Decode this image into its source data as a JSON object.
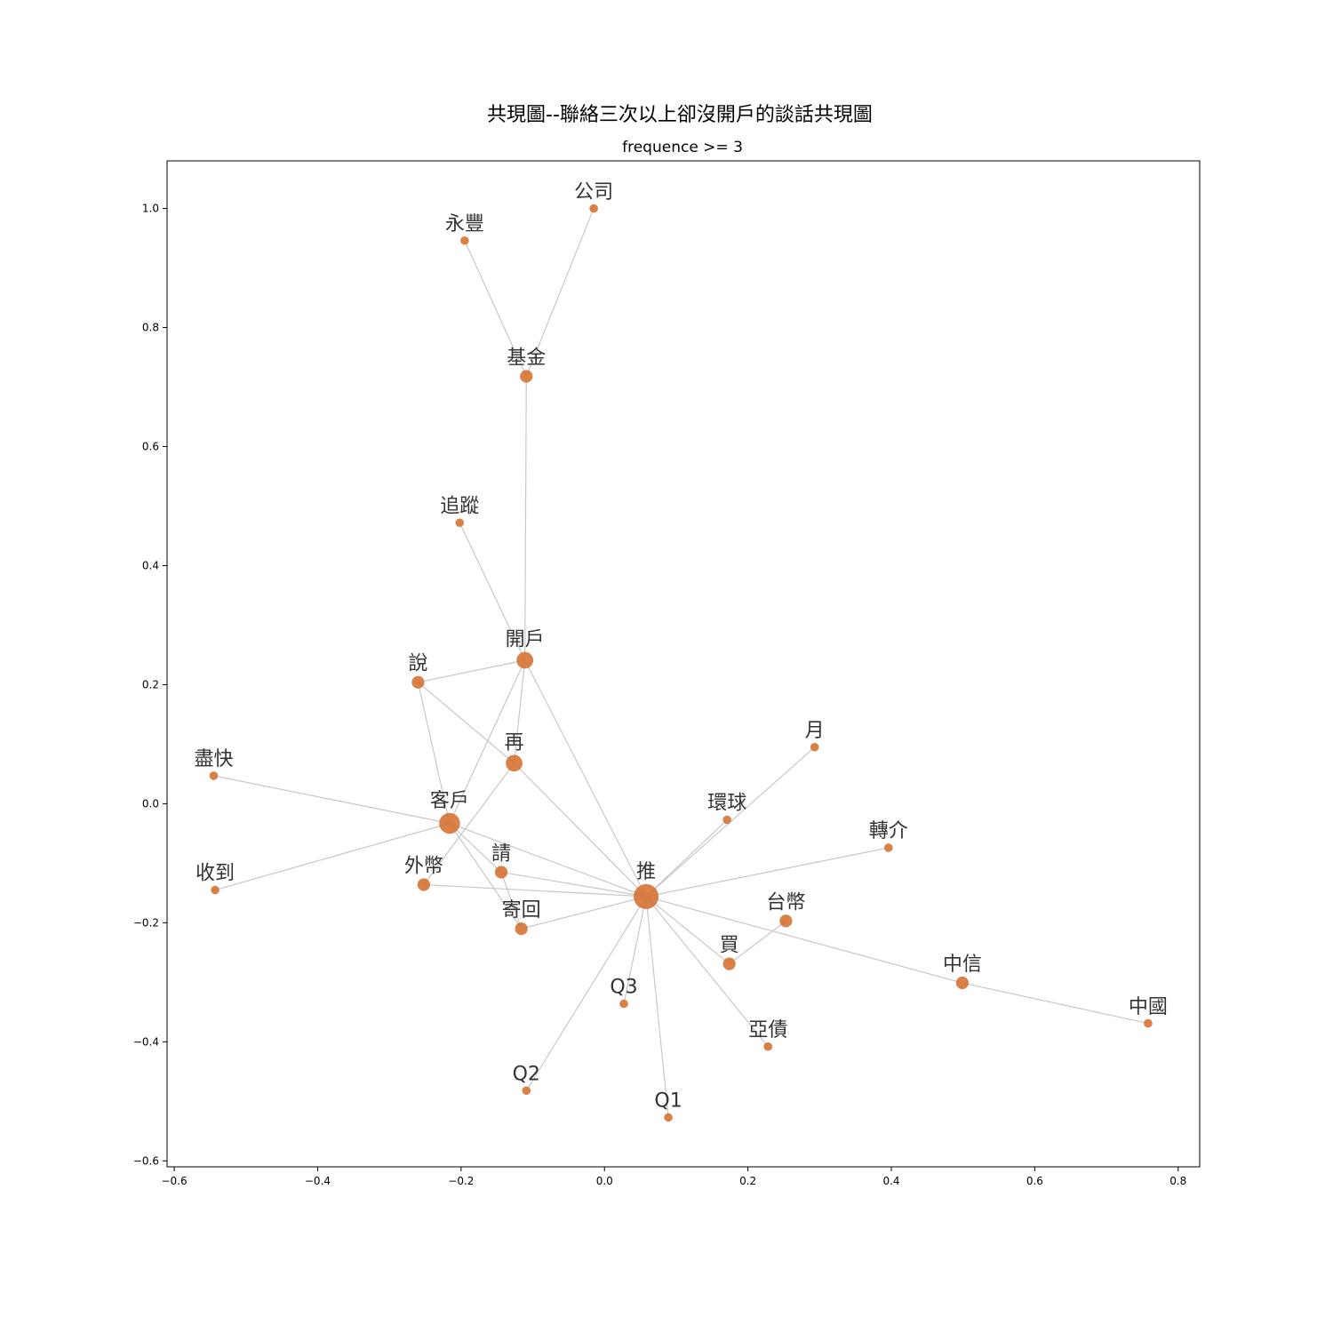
{
  "chart_data": {
    "type": "network",
    "title": "共現圖--聯絡三次以上卻沒開戶的談話共現圖",
    "subtitle": "frequence >= 3",
    "xlim": [
      -0.61,
      0.83
    ],
    "ylim": [
      -0.61,
      1.08
    ],
    "x_ticks": [
      {
        "value": -0.6,
        "label": "−0.6"
      },
      {
        "value": -0.4,
        "label": "−0.4"
      },
      {
        "value": -0.2,
        "label": "−0.2"
      },
      {
        "value": 0.0,
        "label": "0.0"
      },
      {
        "value": 0.2,
        "label": "0.2"
      },
      {
        "value": 0.4,
        "label": "0.4"
      },
      {
        "value": 0.6,
        "label": "0.6"
      },
      {
        "value": 0.8,
        "label": "0.8"
      }
    ],
    "y_ticks": [
      {
        "value": -0.6,
        "label": "−0.6"
      },
      {
        "value": -0.4,
        "label": "−0.4"
      },
      {
        "value": -0.2,
        "label": "−0.2"
      },
      {
        "value": 0.0,
        "label": "0.0"
      },
      {
        "value": 0.2,
        "label": "0.2"
      },
      {
        "value": 0.4,
        "label": "0.4"
      },
      {
        "value": 0.6,
        "label": "0.6"
      },
      {
        "value": 0.8,
        "label": "0.8"
      },
      {
        "value": 1.0,
        "label": "1.0"
      }
    ],
    "node_color": "#d4702c",
    "edge_color": "#c8c8c8",
    "nodes": [
      {
        "id": "公司",
        "x": -0.015,
        "y": 1.0,
        "weight": 1
      },
      {
        "id": "永豐",
        "x": -0.195,
        "y": 0.946,
        "weight": 1
      },
      {
        "id": "基金",
        "x": -0.109,
        "y": 0.718,
        "weight": 2
      },
      {
        "id": "追蹤",
        "x": -0.202,
        "y": 0.472,
        "weight": 1
      },
      {
        "id": "開戶",
        "x": -0.111,
        "y": 0.241,
        "weight": 3
      },
      {
        "id": "說",
        "x": -0.26,
        "y": 0.204,
        "weight": 2
      },
      {
        "id": "再",
        "x": -0.126,
        "y": 0.068,
        "weight": 3
      },
      {
        "id": "盡快",
        "x": -0.545,
        "y": 0.047,
        "weight": 1
      },
      {
        "id": "客戶",
        "x": -0.216,
        "y": -0.033,
        "weight": 4
      },
      {
        "id": "請",
        "x": -0.144,
        "y": -0.115,
        "weight": 2
      },
      {
        "id": "外幣",
        "x": -0.252,
        "y": -0.136,
        "weight": 2
      },
      {
        "id": "收到",
        "x": -0.543,
        "y": -0.145,
        "weight": 1
      },
      {
        "id": "推",
        "x": 0.058,
        "y": -0.156,
        "weight": 5
      },
      {
        "id": "寄回",
        "x": -0.116,
        "y": -0.21,
        "weight": 2
      },
      {
        "id": "月",
        "x": 0.293,
        "y": 0.095,
        "weight": 1
      },
      {
        "id": "環球",
        "x": 0.171,
        "y": -0.027,
        "weight": 1
      },
      {
        "id": "轉介",
        "x": 0.396,
        "y": -0.074,
        "weight": 1
      },
      {
        "id": "台幣",
        "x": 0.253,
        "y": -0.197,
        "weight": 2
      },
      {
        "id": "買",
        "x": 0.174,
        "y": -0.269,
        "weight": 2
      },
      {
        "id": "中信",
        "x": 0.499,
        "y": -0.301,
        "weight": 2
      },
      {
        "id": "Q3",
        "x": 0.027,
        "y": -0.336,
        "weight": 1
      },
      {
        "id": "中國",
        "x": 0.758,
        "y": -0.369,
        "weight": 1
      },
      {
        "id": "亞債",
        "x": 0.228,
        "y": -0.408,
        "weight": 1
      },
      {
        "id": "Q2",
        "x": -0.109,
        "y": -0.482,
        "weight": 1
      },
      {
        "id": "Q1",
        "x": 0.089,
        "y": -0.527,
        "weight": 1
      }
    ],
    "edges": [
      [
        "公司",
        "基金"
      ],
      [
        "永豐",
        "基金"
      ],
      [
        "基金",
        "開戶"
      ],
      [
        "追蹤",
        "開戶"
      ],
      [
        "開戶",
        "說"
      ],
      [
        "開戶",
        "再"
      ],
      [
        "開戶",
        "客戶"
      ],
      [
        "開戶",
        "推"
      ],
      [
        "說",
        "再"
      ],
      [
        "說",
        "客戶"
      ],
      [
        "再",
        "外幣"
      ],
      [
        "再",
        "推"
      ],
      [
        "盡快",
        "客戶"
      ],
      [
        "收到",
        "客戶"
      ],
      [
        "客戶",
        "請"
      ],
      [
        "客戶",
        "寄回"
      ],
      [
        "客戶",
        "推"
      ],
      [
        "請",
        "寄回"
      ],
      [
        "請",
        "推"
      ],
      [
        "外幣",
        "推"
      ],
      [
        "寄回",
        "推"
      ],
      [
        "推",
        "月"
      ],
      [
        "推",
        "環球"
      ],
      [
        "推",
        "轉介"
      ],
      [
        "推",
        "買"
      ],
      [
        "推",
        "中信"
      ],
      [
        "推",
        "Q3"
      ],
      [
        "推",
        "亞債"
      ],
      [
        "推",
        "Q2"
      ],
      [
        "推",
        "Q1"
      ],
      [
        "台幣",
        "買"
      ],
      [
        "中信",
        "中國"
      ]
    ]
  }
}
